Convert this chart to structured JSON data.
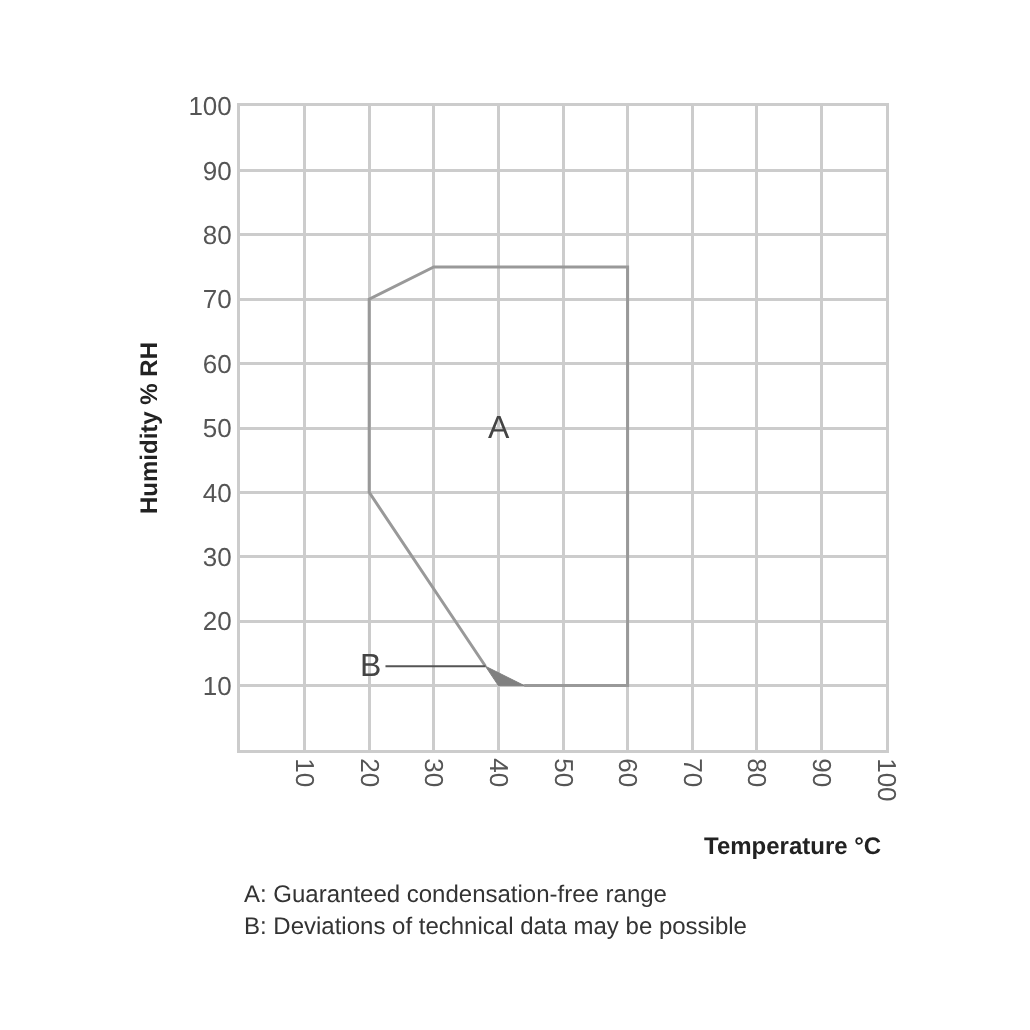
{
  "chart_data": {
    "type": "line",
    "xlabel": "Temperature °C",
    "ylabel": "Humidity % RH",
    "xlim": [
      0,
      100
    ],
    "ylim": [
      0,
      100
    ],
    "xticks": [
      10,
      20,
      30,
      40,
      50,
      60,
      70,
      80,
      90,
      100
    ],
    "yticks": [
      10,
      20,
      30,
      40,
      50,
      60,
      70,
      80,
      90,
      100
    ],
    "grid": true,
    "series": [
      {
        "color": "#999999",
        "x": [
          38,
          20,
          20,
          30,
          60,
          60,
          44
        ],
        "values": [
          13,
          40,
          70,
          75,
          75,
          10,
          10
        ]
      },
      {
        "type": "area",
        "color": "#808080",
        "x": [
          38,
          40,
          44,
          38
        ],
        "values": [
          13,
          10,
          10,
          13
        ]
      }
    ],
    "annotations": [
      "A",
      {
        "text": "B",
        "x": 38,
        "y": 13
      },
      "A: Guaranteed condensation-free range",
      "B: Deviations of technical data may be possible"
    ]
  }
}
